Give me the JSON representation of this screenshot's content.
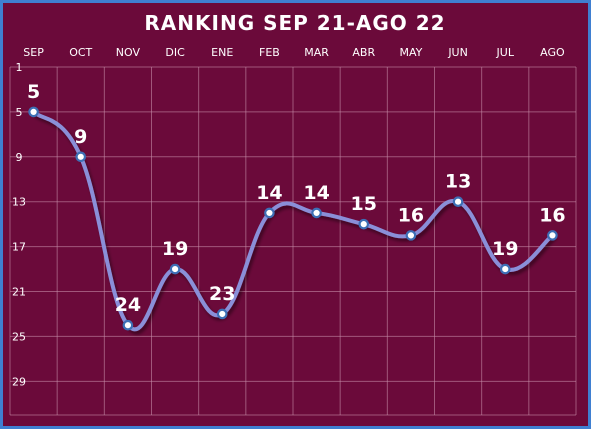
{
  "colors": {
    "background": "#6b0a3a",
    "border": "#3f7fd1",
    "grid": "#c58aa6",
    "line": "#8a8fd8",
    "marker_fill": "#ffffff",
    "marker_stroke": "#3d6fb5",
    "text": "#ffffff"
  },
  "chart_data": {
    "type": "line",
    "title": "RANKING  SEP 21-AGO 22",
    "xlabel": "",
    "ylabel": "",
    "categories": [
      "SEP",
      "OCT",
      "NOV",
      "DIC",
      "ENE",
      "FEB",
      "MAR",
      "ABR",
      "MAY",
      "JUN",
      "JUL",
      "AGO"
    ],
    "series": [
      {
        "values": [
          5,
          9,
          24,
          19,
          23,
          14,
          14,
          15,
          16,
          13,
          19,
          16
        ]
      }
    ],
    "data_labels": [
      "5",
      "9",
      "24",
      "19",
      "23",
      "14",
      "14",
      "15",
      "16",
      "13",
      "19",
      "16"
    ],
    "y_ticks": [
      1,
      5,
      9,
      13,
      17,
      21,
      25,
      29
    ],
    "ylim": [
      1,
      32
    ],
    "y_inverted": true,
    "grid": true,
    "legend": "none",
    "smooth": true
  }
}
